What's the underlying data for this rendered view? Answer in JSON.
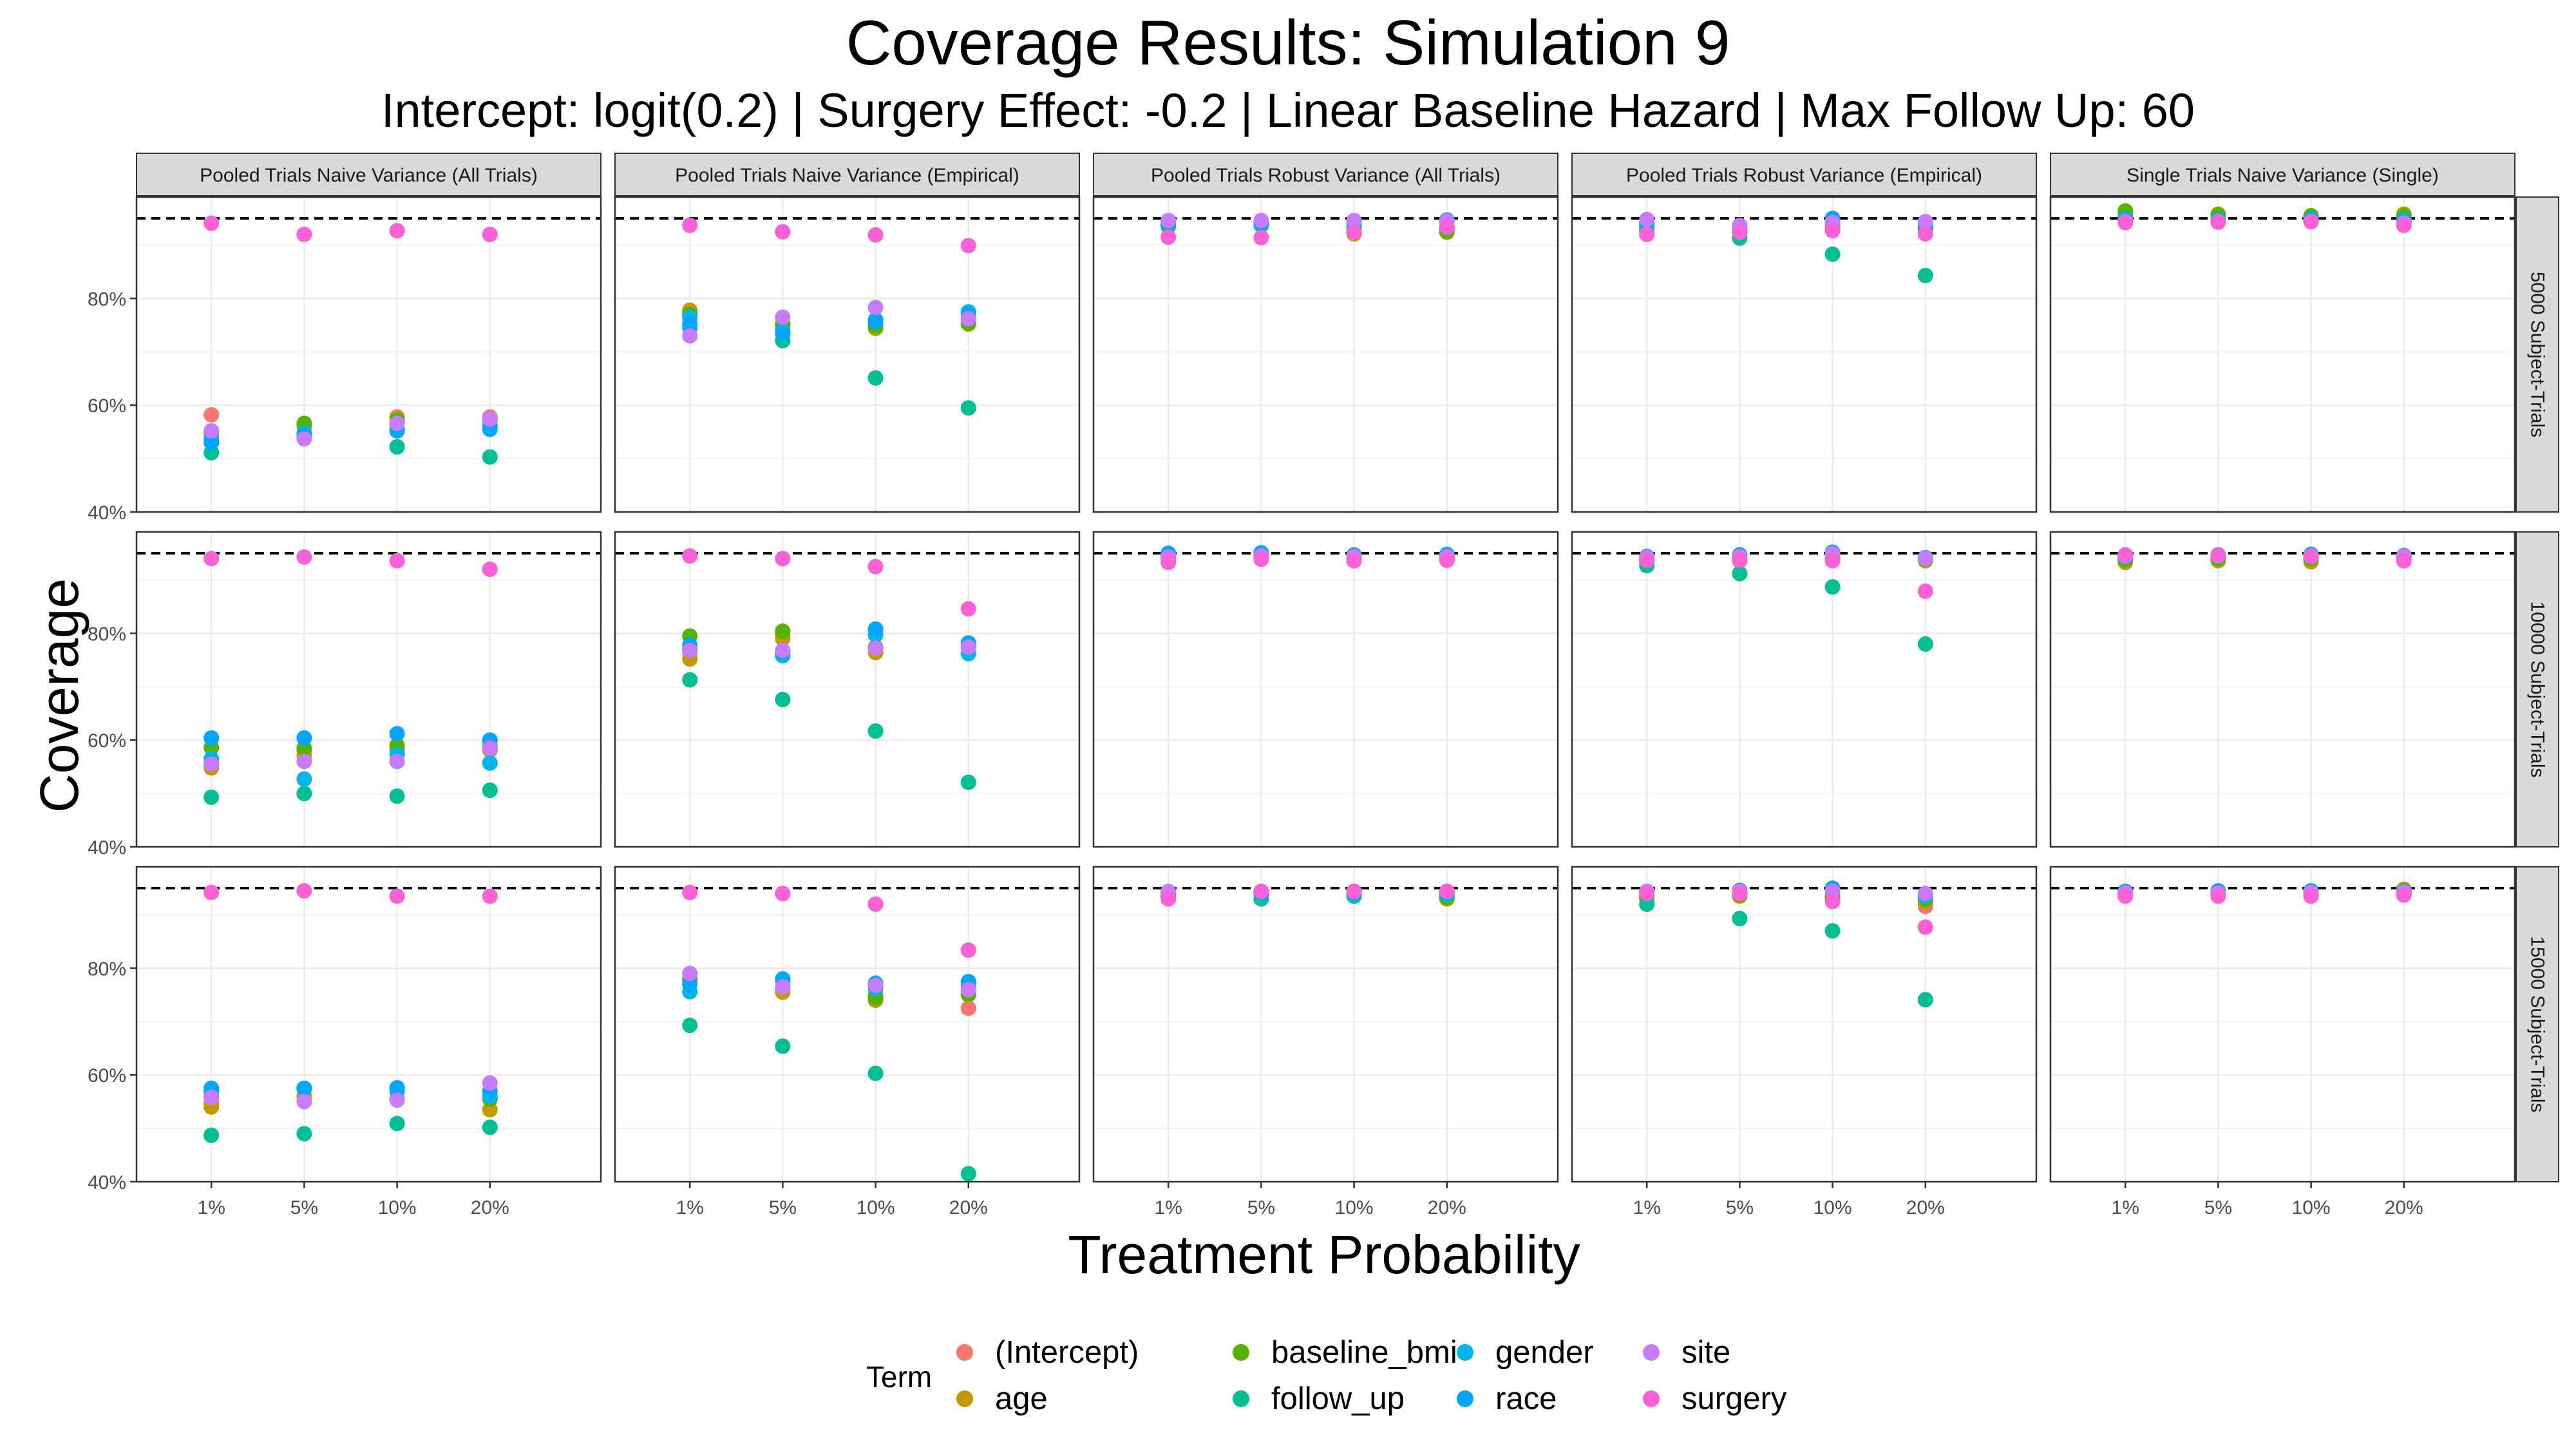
{
  "chart_data": {
    "type": "scatter",
    "title": "Coverage Results: Simulation 9",
    "subtitle": "Intercept: logit(0.2) | Surgery Effect: -0.2 | Linear Baseline Hazard | Max Follow Up: 60",
    "xlabel": "Treatment Probability",
    "ylabel": "Coverage",
    "categories": [
      "1%",
      "5%",
      "10%",
      "20%"
    ],
    "yticks": [
      "40%",
      "60%",
      "80%"
    ],
    "ylim": [
      0.4,
      0.99
    ],
    "reference_line": 0.95,
    "grid": true,
    "legend_title": "Term",
    "legend_position": "bottom",
    "column_facets": [
      "Pooled Trials Naive Variance (All Trials)",
      "Pooled Trials Naive Variance (Empirical)",
      "Pooled Trials Robust Variance (All Trials)",
      "Pooled Trials Robust Variance (Empirical)",
      "Single Trials Naive Variance (Single)"
    ],
    "row_facets": [
      "5000 Subject-Trials",
      "10000 Subject-Trials",
      "15000 Subject-Trials"
    ],
    "terms": [
      {
        "name": "(Intercept)",
        "color": "#F8766D"
      },
      {
        "name": "age",
        "color": "#C49A00"
      },
      {
        "name": "baseline_bmi",
        "color": "#53B400"
      },
      {
        "name": "follow_up",
        "color": "#00C094"
      },
      {
        "name": "gender",
        "color": "#00B6EB"
      },
      {
        "name": "race",
        "color": "#00A6FF"
      },
      {
        "name": "site",
        "color": "#C77CFF"
      },
      {
        "name": "surgery",
        "color": "#FB61D7"
      }
    ],
    "panels": [
      [
        {
          "values": {
            "(Intercept)": [
              0.582,
              0.56,
              0.578,
              0.578
            ],
            "age": [
              0.548,
              0.562,
              0.574,
              0.573
            ],
            "baseline_bmi": [
              0.546,
              0.566,
              0.572,
              0.572
            ],
            "follow_up": [
              0.511,
              0.541,
              0.522,
              0.503
            ],
            "gender": [
              0.537,
              0.548,
              0.556,
              0.562
            ],
            "race": [
              0.53,
              0.545,
              0.552,
              0.555
            ],
            "site": [
              0.552,
              0.537,
              0.566,
              0.574
            ],
            "surgery": [
              0.941,
              0.92,
              0.927,
              0.92
            ]
          }
        },
        {
          "values": {
            "(Intercept)": [
              0.775,
              0.745,
              0.75,
              0.755
            ],
            "age": [
              0.778,
              0.748,
              0.744,
              0.752
            ],
            "baseline_bmi": [
              0.77,
              0.752,
              0.748,
              0.754
            ],
            "follow_up": [
              0.745,
              0.721,
              0.651,
              0.595
            ],
            "gender": [
              0.765,
              0.738,
              0.76,
              0.775
            ],
            "race": [
              0.752,
              0.734,
              0.756,
              0.77
            ],
            "site": [
              0.73,
              0.765,
              0.783,
              0.762
            ],
            "surgery": [
              0.937,
              0.925,
              0.919,
              0.899
            ]
          }
        },
        {
          "values": {
            "(Intercept)": [
              0.938,
              0.938,
              0.928,
              0.93
            ],
            "age": [
              0.935,
              0.94,
              0.921,
              0.924
            ],
            "baseline_bmi": [
              0.938,
              0.942,
              0.929,
              0.926
            ],
            "follow_up": [
              0.935,
              0.937,
              0.934,
              0.933
            ],
            "gender": [
              0.943,
              0.944,
              0.942,
              0.944
            ],
            "race": [
              0.944,
              0.942,
              0.944,
              0.947
            ],
            "site": [
              0.946,
              0.946,
              0.946,
              0.945
            ],
            "surgery": [
              0.915,
              0.914,
              0.924,
              0.933
            ]
          }
        },
        {
          "values": {
            "(Intercept)": [
              0.935,
              0.928,
              0.935,
              0.93
            ],
            "age": [
              0.932,
              0.925,
              0.93,
              0.928
            ],
            "baseline_bmi": [
              0.934,
              0.927,
              0.938,
              0.933
            ],
            "follow_up": [
              0.928,
              0.913,
              0.883,
              0.843
            ],
            "gender": [
              0.94,
              0.933,
              0.944,
              0.932
            ],
            "race": [
              0.943,
              0.936,
              0.95,
              0.938
            ],
            "site": [
              0.948,
              0.937,
              0.942,
              0.944
            ],
            "surgery": [
              0.92,
              0.924,
              0.927,
              0.921
            ]
          }
        },
        {
          "values": {
            "(Intercept)": [
              0.955,
              0.955,
              0.95,
              0.955
            ],
            "age": [
              0.962,
              0.958,
              0.952,
              0.958
            ],
            "baseline_bmi": [
              0.964,
              0.956,
              0.955,
              0.955
            ],
            "follow_up": [
              0.95,
              0.948,
              0.95,
              0.948
            ],
            "gender": [
              0.948,
              0.946,
              0.947,
              0.944
            ],
            "race": [
              0.946,
              0.945,
              0.946,
              0.942
            ],
            "site": [
              0.944,
              0.944,
              0.944,
              0.941
            ],
            "surgery": [
              0.942,
              0.943,
              0.944,
              0.937
            ]
          }
        }
      ],
      [
        {
          "values": {
            "(Intercept)": [
              0.557,
              0.58,
              0.583,
              0.586
            ],
            "age": [
              0.548,
              0.571,
              0.578,
              0.581
            ],
            "baseline_bmi": [
              0.586,
              0.585,
              0.59,
              0.59
            ],
            "follow_up": [
              0.493,
              0.5,
              0.495,
              0.506
            ],
            "gender": [
              0.565,
              0.527,
              0.573,
              0.557
            ],
            "race": [
              0.604,
              0.604,
              0.612,
              0.6
            ],
            "site": [
              0.555,
              0.56,
              0.56,
              0.585
            ],
            "surgery": [
              0.94,
              0.943,
              0.936,
              0.92
            ]
          }
        },
        {
          "values": {
            "(Intercept)": [
              0.765,
              0.796,
              0.772,
              0.778
            ],
            "age": [
              0.752,
              0.79,
              0.764,
              0.775
            ],
            "baseline_bmi": [
              0.795,
              0.804,
              0.774,
              0.776
            ],
            "follow_up": [
              0.713,
              0.676,
              0.617,
              0.521
            ],
            "gender": [
              0.77,
              0.758,
              0.797,
              0.762
            ],
            "race": [
              0.778,
              0.764,
              0.808,
              0.782
            ],
            "site": [
              0.768,
              0.768,
              0.772,
              0.774
            ],
            "surgery": [
              0.945,
              0.94,
              0.925,
              0.846
            ]
          }
        },
        {
          "values": {
            "(Intercept)": [
              0.94,
              0.94,
              0.938,
              0.94
            ],
            "age": [
              0.942,
              0.941,
              0.937,
              0.94
            ],
            "baseline_bmi": [
              0.943,
              0.943,
              0.939,
              0.941
            ],
            "follow_up": [
              0.944,
              0.944,
              0.942,
              0.944
            ],
            "gender": [
              0.948,
              0.949,
              0.946,
              0.947
            ],
            "race": [
              0.95,
              0.951,
              0.947,
              0.948
            ],
            "site": [
              0.943,
              0.945,
              0.944,
              0.944
            ],
            "surgery": [
              0.933,
              0.939,
              0.936,
              0.937
            ]
          }
        },
        {
          "values": {
            "(Intercept)": [
              0.937,
              0.938,
              0.941,
              0.939
            ],
            "age": [
              0.935,
              0.936,
              0.938,
              0.936
            ],
            "baseline_bmi": [
              0.942,
              0.942,
              0.944,
              0.942
            ],
            "follow_up": [
              0.927,
              0.912,
              0.887,
              0.78
            ],
            "gender": [
              0.941,
              0.946,
              0.949,
              0.942
            ],
            "race": [
              0.944,
              0.947,
              0.952,
              0.94
            ],
            "site": [
              0.942,
              0.944,
              0.949,
              0.941
            ],
            "surgery": [
              0.937,
              0.937,
              0.936,
              0.879
            ]
          }
        },
        {
          "values": {
            "(Intercept)": [
              0.94,
              0.94,
              0.94,
              0.94
            ],
            "age": [
              0.933,
              0.936,
              0.934,
              0.939
            ],
            "baseline_bmi": [
              0.938,
              0.94,
              0.94,
              0.94
            ],
            "follow_up": [
              0.943,
              0.944,
              0.943,
              0.943
            ],
            "gender": [
              0.944,
              0.945,
              0.946,
              0.944
            ],
            "race": [
              0.946,
              0.947,
              0.948,
              0.946
            ],
            "site": [
              0.945,
              0.945,
              0.945,
              0.945
            ],
            "surgery": [
              0.947,
              0.946,
              0.944,
              0.936
            ]
          }
        }
      ],
      [
        {
          "values": {
            "(Intercept)": [
              0.547,
              0.56,
              0.555,
              0.555
            ],
            "age": [
              0.54,
              0.56,
              0.555,
              0.535
            ],
            "baseline_bmi": [
              0.56,
              0.575,
              0.575,
              0.555
            ],
            "follow_up": [
              0.487,
              0.49,
              0.509,
              0.502
            ],
            "gender": [
              0.569,
              0.574,
              0.569,
              0.56
            ],
            "race": [
              0.575,
              0.575,
              0.576,
              0.57
            ],
            "site": [
              0.558,
              0.55,
              0.553,
              0.585
            ],
            "surgery": [
              0.942,
              0.945,
              0.935,
              0.935
            ]
          }
        },
        {
          "values": {
            "(Intercept)": [
              0.778,
              0.76,
              0.75,
              0.725
            ],
            "age": [
              0.775,
              0.755,
              0.74,
              0.75
            ],
            "baseline_bmi": [
              0.78,
              0.765,
              0.745,
              0.752
            ],
            "follow_up": [
              0.693,
              0.654,
              0.603,
              0.415
            ],
            "gender": [
              0.756,
              0.777,
              0.762,
              0.768
            ],
            "race": [
              0.77,
              0.78,
              0.772,
              0.775
            ],
            "site": [
              0.79,
              0.765,
              0.768,
              0.76
            ],
            "surgery": [
              0.942,
              0.94,
              0.92,
              0.834
            ]
          }
        },
        {
          "values": {
            "(Intercept)": [
              0.936,
              0.94,
              0.94,
              0.938
            ],
            "age": [
              0.934,
              0.938,
              0.937,
              0.93
            ],
            "baseline_bmi": [
              0.939,
              0.94,
              0.938,
              0.932
            ],
            "follow_up": [
              0.935,
              0.93,
              0.935,
              0.937
            ],
            "gender": [
              0.94,
              0.94,
              0.94,
              0.94
            ],
            "race": [
              0.942,
              0.942,
              0.942,
              0.942
            ],
            "site": [
              0.944,
              0.944,
              0.944,
              0.944
            ],
            "surgery": [
              0.93,
              0.944,
              0.944,
              0.944
            ]
          }
        },
        {
          "values": {
            "(Intercept)": [
              0.935,
              0.94,
              0.935,
              0.916
            ],
            "age": [
              0.93,
              0.935,
              0.93,
              0.925
            ],
            "baseline_bmi": [
              0.934,
              0.938,
              0.934,
              0.929
            ],
            "follow_up": [
              0.92,
              0.893,
              0.87,
              0.741
            ],
            "gender": [
              0.941,
              0.944,
              0.947,
              0.935
            ],
            "race": [
              0.943,
              0.946,
              0.95,
              0.938
            ],
            "site": [
              0.944,
              0.944,
              0.944,
              0.94
            ],
            "surgery": [
              0.94,
              0.94,
              0.925,
              0.877
            ]
          }
        },
        {
          "values": {
            "(Intercept)": [
              0.94,
              0.94,
              0.94,
              0.94
            ],
            "age": [
              0.94,
              0.939,
              0.939,
              0.948
            ],
            "baseline_bmi": [
              0.941,
              0.941,
              0.945,
              0.944
            ],
            "follow_up": [
              0.942,
              0.942,
              0.942,
              0.942
            ],
            "gender": [
              0.943,
              0.944,
              0.944,
              0.944
            ],
            "race": [
              0.944,
              0.945,
              0.945,
              0.94
            ],
            "site": [
              0.941,
              0.941,
              0.942,
              0.942
            ],
            "surgery": [
              0.935,
              0.935,
              0.935,
              0.937
            ]
          }
        }
      ]
    ]
  }
}
